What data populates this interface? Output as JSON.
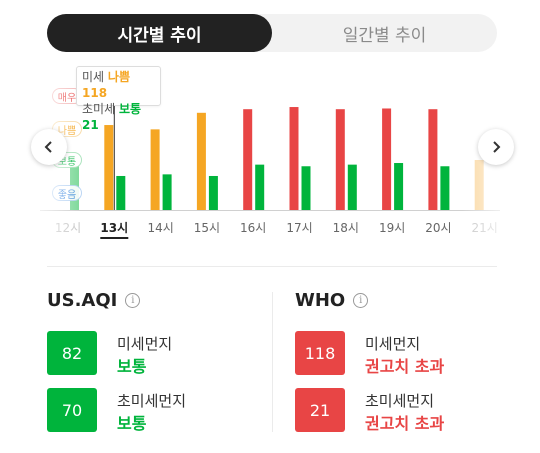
{
  "tabs": {
    "hourly": "시간별 추이",
    "daily": "일간별 추이"
  },
  "chart": {
    "level_tags": [
      "매우",
      "나쁨",
      "보통",
      "좋음"
    ],
    "tooltip": {
      "fine_label": "미세",
      "fine_status": "나쁨",
      "fine_value": "118",
      "ultra_label": "초미세",
      "ultra_status": "보통",
      "ultra_value": "21"
    }
  },
  "chart_data": {
    "type": "bar",
    "categories": [
      "12시",
      "13시",
      "14시",
      "15시",
      "16시",
      "17시",
      "18시",
      "19시",
      "20시",
      "21시"
    ],
    "selected": "13시",
    "series": [
      {
        "name": "미세",
        "values": [
          null,
          118,
          112,
          135,
          140,
          143,
          140,
          141,
          140,
          null
        ]
      },
      {
        "name": "초미세",
        "values": [
          27,
          21,
          22,
          21,
          28,
          27,
          28,
          29,
          27,
          null
        ]
      }
    ],
    "colors": {
      "좋음": "#4a90e2",
      "보통": "#00b43c",
      "나쁨": "#f5a623",
      "매우": "#e84545",
      "faded_green": "#7ed99a",
      "faded_orange": "#fad7a0"
    }
  },
  "usaqi": {
    "title": "US.AQI",
    "info_icon": "i",
    "fine": {
      "value": "82",
      "name": "미세먼지",
      "status": "보통",
      "color": "#00b43c"
    },
    "ultra": {
      "value": "70",
      "name": "초미세먼지",
      "status": "보통",
      "color": "#00b43c"
    }
  },
  "who": {
    "title": "WHO",
    "info_icon": "i",
    "fine": {
      "value": "118",
      "name": "미세먼지",
      "status": "권고치 초과",
      "color": "#e84545"
    },
    "ultra": {
      "value": "21",
      "name": "초미세먼지",
      "status": "권고치 초과",
      "color": "#e84545"
    }
  }
}
